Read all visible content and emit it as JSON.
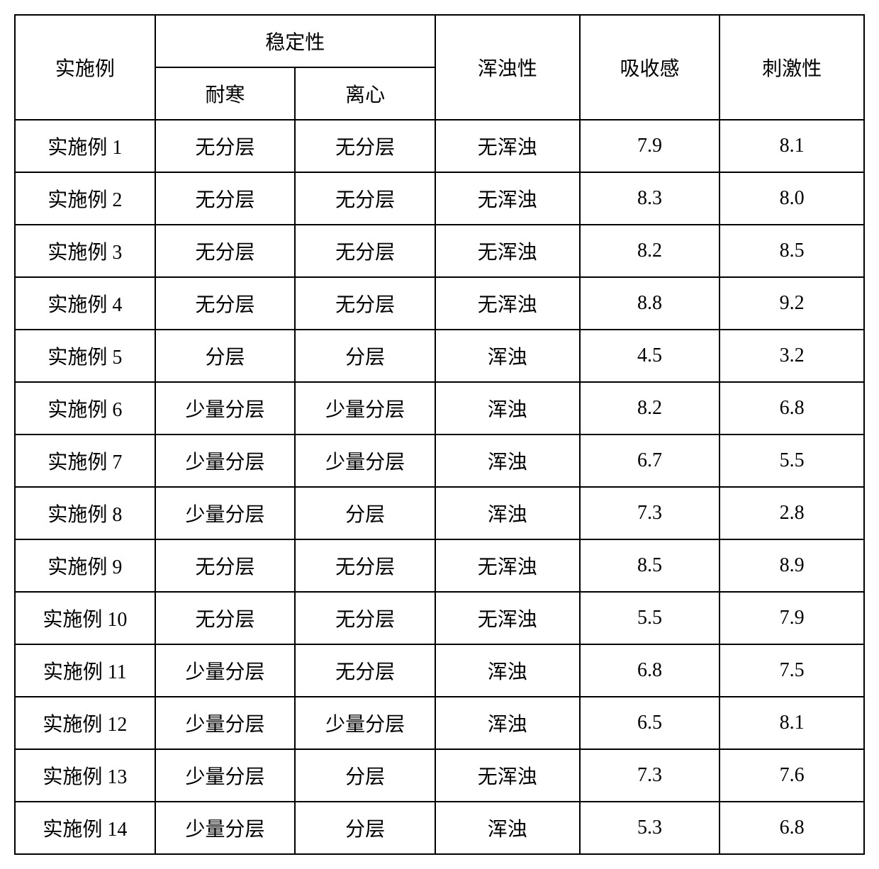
{
  "table": {
    "headers": {
      "example": "实施例",
      "stability": "稳定性",
      "cold_resistance": "耐寒",
      "centrifuge": "离心",
      "turbidity": "浑浊性",
      "absorption": "吸收感",
      "irritation": "刺激性"
    },
    "rows": [
      {
        "example": "实施例 1",
        "cold": "无分层",
        "centrifuge": "无分层",
        "turbidity": "无浑浊",
        "absorption": "7.9",
        "irritation": "8.1"
      },
      {
        "example": "实施例 2",
        "cold": "无分层",
        "centrifuge": "无分层",
        "turbidity": "无浑浊",
        "absorption": "8.3",
        "irritation": "8.0"
      },
      {
        "example": "实施例 3",
        "cold": "无分层",
        "centrifuge": "无分层",
        "turbidity": "无浑浊",
        "absorption": "8.2",
        "irritation": "8.5"
      },
      {
        "example": "实施例 4",
        "cold": "无分层",
        "centrifuge": "无分层",
        "turbidity": "无浑浊",
        "absorption": "8.8",
        "irritation": "9.2"
      },
      {
        "example": "实施例 5",
        "cold": "分层",
        "centrifuge": "分层",
        "turbidity": "浑浊",
        "absorption": "4.5",
        "irritation": "3.2"
      },
      {
        "example": "实施例 6",
        "cold": "少量分层",
        "centrifuge": "少量分层",
        "turbidity": "浑浊",
        "absorption": "8.2",
        "irritation": "6.8"
      },
      {
        "example": "实施例 7",
        "cold": "少量分层",
        "centrifuge": "少量分层",
        "turbidity": "浑浊",
        "absorption": "6.7",
        "irritation": "5.5"
      },
      {
        "example": "实施例 8",
        "cold": "少量分层",
        "centrifuge": "分层",
        "turbidity": "浑浊",
        "absorption": "7.3",
        "irritation": "2.8"
      },
      {
        "example": "实施例 9",
        "cold": "无分层",
        "centrifuge": "无分层",
        "turbidity": "无浑浊",
        "absorption": "8.5",
        "irritation": "8.9"
      },
      {
        "example": "实施例 10",
        "cold": "无分层",
        "centrifuge": "无分层",
        "turbidity": "无浑浊",
        "absorption": "5.5",
        "irritation": "7.9"
      },
      {
        "example": "实施例 11",
        "cold": "少量分层",
        "centrifuge": "无分层",
        "turbidity": "浑浊",
        "absorption": "6.8",
        "irritation": "7.5"
      },
      {
        "example": "实施例 12",
        "cold": "少量分层",
        "centrifuge": "少量分层",
        "turbidity": "浑浊",
        "absorption": "6.5",
        "irritation": "8.1"
      },
      {
        "example": "实施例 13",
        "cold": "少量分层",
        "centrifuge": "分层",
        "turbidity": "无浑浊",
        "absorption": "7.3",
        "irritation": "7.6"
      },
      {
        "example": "实施例 14",
        "cold": "少量分层",
        "centrifuge": "分层",
        "turbidity": "浑浊",
        "absorption": "5.3",
        "irritation": "6.8"
      }
    ],
    "styling": {
      "border_color": "#000000",
      "border_width": 2,
      "background_color": "#ffffff",
      "text_color": "#000000",
      "font_size": 28,
      "font_family": "SimSun",
      "cell_padding_vertical": 16,
      "cell_padding_horizontal": 8,
      "column_widths_percent": [
        16.5,
        16.5,
        16.5,
        17,
        16.5,
        17
      ],
      "text_align": "center"
    }
  }
}
